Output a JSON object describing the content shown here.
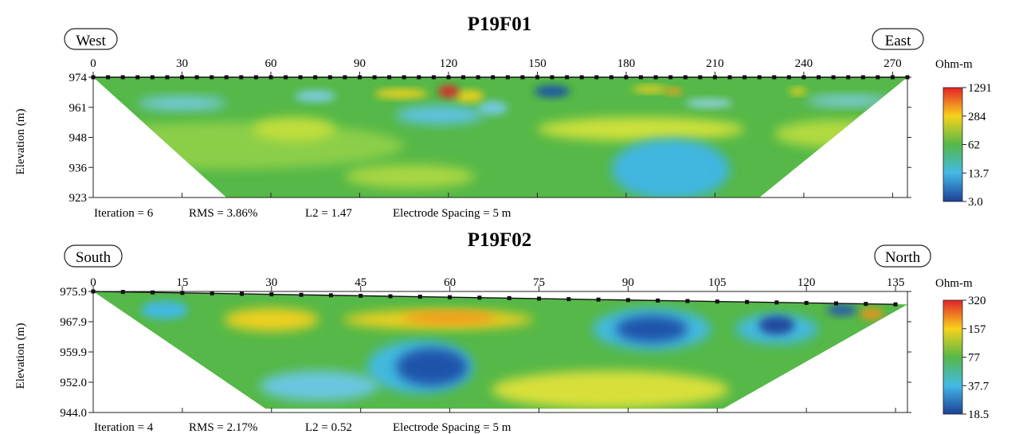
{
  "chart_data": [
    {
      "type": "heatmap",
      "title": "P19F01",
      "left_label": "West",
      "right_label": "East",
      "ylabel": "Elevation (m)",
      "x_ticks": [
        0,
        30,
        60,
        90,
        120,
        150,
        180,
        210,
        240,
        270
      ],
      "xlim": [
        0,
        275
      ],
      "y_ticks": [
        "974",
        "961",
        "948",
        "936",
        "923"
      ],
      "ylim": [
        923,
        974
      ],
      "colorbar": {
        "unit": "Ohm-m",
        "labels": [
          "1291",
          "284",
          "62",
          "13.7",
          "3.0"
        ],
        "colors": [
          "#e3222a",
          "#f7d21b",
          "#55b848",
          "#43b9e6",
          "#1c3f96"
        ]
      },
      "footer": {
        "iteration": "Iteration = 6",
        "rms": "RMS = 3.86%",
        "l2": "L2 = 1.47",
        "spacing": "Electrode Spacing = 5 m"
      },
      "electrodes": {
        "start": 0,
        "end": 275,
        "spacing": 5,
        "elev_start": 974,
        "elev_end": 974
      },
      "section": {
        "top_left": [
          0,
          974
        ],
        "top_right": [
          275,
          974
        ],
        "bottom_left": [
          45,
          923
        ],
        "bottom_right": [
          225,
          923
        ]
      },
      "anomalies": [
        {
          "x": 45,
          "y": 945,
          "rx": 60,
          "ry": 10,
          "level": "low",
          "color": "#8fd04a"
        },
        {
          "x": 68,
          "y": 952,
          "rx": 14,
          "ry": 5,
          "level": "moderate",
          "color": "#c5df3a"
        },
        {
          "x": 107,
          "y": 932,
          "rx": 22,
          "ry": 5,
          "level": "moderate",
          "color": "#aed843"
        },
        {
          "x": 185,
          "y": 952,
          "rx": 35,
          "ry": 5,
          "level": "moderate",
          "color": "#d5e33b"
        },
        {
          "x": 252,
          "y": 950,
          "rx": 22,
          "ry": 6,
          "level": "moderate",
          "color": "#b8dc40"
        },
        {
          "x": 30,
          "y": 963,
          "rx": 15,
          "ry": 3,
          "level": "low",
          "color": "#76cbe8"
        },
        {
          "x": 75,
          "y": 966,
          "rx": 7,
          "ry": 2.5,
          "level": "low",
          "color": "#7fcde8"
        },
        {
          "x": 117,
          "y": 958,
          "rx": 15,
          "ry": 4,
          "level": "low",
          "color": "#5fc3ec"
        },
        {
          "x": 135,
          "y": 961,
          "rx": 5,
          "ry": 3,
          "level": "low",
          "color": "#76cbe8"
        },
        {
          "x": 195,
          "y": 935,
          "rx": 20,
          "ry": 13,
          "level": "low",
          "color": "#3fb6e8"
        },
        {
          "x": 255,
          "y": 964,
          "rx": 14,
          "ry": 2.5,
          "level": "low",
          "color": "#7fcde8"
        },
        {
          "x": 208,
          "y": 963,
          "rx": 8,
          "ry": 2,
          "level": "low",
          "color": "#8fd3e0"
        },
        {
          "x": 104,
          "y": 967,
          "rx": 9,
          "ry": 2,
          "level": "high",
          "color": "#f7d21b"
        },
        {
          "x": 127,
          "y": 966,
          "rx": 5,
          "ry": 2.5,
          "level": "high",
          "color": "#f7d21b"
        },
        {
          "x": 188,
          "y": 969,
          "rx": 6,
          "ry": 1.5,
          "level": "high",
          "color": "#f7d21b"
        },
        {
          "x": 196,
          "y": 968,
          "rx": 3,
          "ry": 1.5,
          "level": "high",
          "color": "#f4a21f"
        },
        {
          "x": 238,
          "y": 968,
          "rx": 3,
          "ry": 1.5,
          "level": "high",
          "color": "#f7d21b"
        },
        {
          "x": 120,
          "y": 968,
          "rx": 3.5,
          "ry": 2.5,
          "level": "very high",
          "color": "#e3222a"
        },
        {
          "x": 155,
          "y": 968,
          "rx": 6,
          "ry": 2.5,
          "level": "very low",
          "color": "#1c4fa8"
        }
      ]
    },
    {
      "type": "heatmap",
      "title": "P19F02",
      "left_label": "South",
      "right_label": "North",
      "ylabel": "Elevation (m)",
      "x_ticks": [
        0,
        15,
        30,
        45,
        60,
        75,
        90,
        105,
        120,
        135
      ],
      "xlim": [
        0,
        137
      ],
      "y_ticks": [
        "975.9",
        "967.9",
        "959.9",
        "952.0",
        "944.0"
      ],
      "ylim": [
        944.0,
        975.9
      ],
      "colorbar": {
        "unit": "Ohm-m",
        "labels": [
          "320",
          "157",
          "77",
          "37.7",
          "18.5"
        ],
        "colors": [
          "#e3222a",
          "#f7d21b",
          "#55b848",
          "#43b9e6",
          "#1c3f96"
        ]
      },
      "footer": {
        "iteration": "Iteration = 4",
        "rms": "RMS = 2.17%",
        "l2": "L2 = 0.52",
        "spacing": "Electrode Spacing = 5 m"
      },
      "electrodes": {
        "start": 0,
        "end": 135,
        "spacing": 5,
        "elev_start": 975.9,
        "elev_end": 972.5
      },
      "section": {
        "top_left": [
          0,
          975.9
        ],
        "top_right": [
          137,
          972.5
        ],
        "bottom_left": [
          29,
          945
        ],
        "bottom_right": [
          106,
          945
        ]
      },
      "anomalies": [
        {
          "x": 12,
          "y": 971,
          "rx": 4,
          "ry": 2.5,
          "level": "low",
          "color": "#43b9e6"
        },
        {
          "x": 30,
          "y": 968.5,
          "rx": 8,
          "ry": 3,
          "level": "high",
          "color": "#f7d21b"
        },
        {
          "x": 58,
          "y": 968.5,
          "rx": 16,
          "ry": 2.5,
          "level": "high",
          "color": "#f7d21b"
        },
        {
          "x": 60,
          "y": 969,
          "rx": 8,
          "ry": 1.6,
          "level": "very high",
          "color": "#f4921f"
        },
        {
          "x": 55,
          "y": 956,
          "rx": 9,
          "ry": 7,
          "level": "low",
          "color": "#43b9e6"
        },
        {
          "x": 57,
          "y": 956,
          "rx": 6,
          "ry": 5,
          "level": "very low",
          "color": "#1c4fa8"
        },
        {
          "x": 38,
          "y": 951,
          "rx": 10,
          "ry": 4,
          "level": "low",
          "color": "#6cc8e8"
        },
        {
          "x": 87,
          "y": 950,
          "rx": 20,
          "ry": 5,
          "level": "high",
          "color": "#e0e23a"
        },
        {
          "x": 94,
          "y": 966,
          "rx": 10,
          "ry": 5.5,
          "level": "low",
          "color": "#43b9e6"
        },
        {
          "x": 94,
          "y": 966,
          "rx": 6,
          "ry": 3.5,
          "level": "very low",
          "color": "#1c4fa8"
        },
        {
          "x": 115,
          "y": 966,
          "rx": 7,
          "ry": 4,
          "level": "low",
          "color": "#43b9e6"
        },
        {
          "x": 115,
          "y": 967,
          "rx": 3,
          "ry": 2.5,
          "level": "very low",
          "color": "#24479c"
        },
        {
          "x": 131,
          "y": 970,
          "rx": 2,
          "ry": 1.5,
          "level": "high",
          "color": "#f4921f"
        },
        {
          "x": 126,
          "y": 971,
          "rx": 2.5,
          "ry": 1.5,
          "level": "low",
          "color": "#2a57b0"
        }
      ]
    }
  ]
}
